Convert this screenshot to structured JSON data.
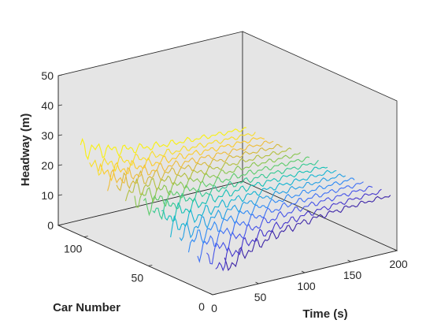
{
  "chart_data": {
    "type": "3d-line",
    "xlabel": "Time (s)",
    "ylabel": "Car Number",
    "zlabel": "Headway (m)",
    "xlim": [
      0,
      200
    ],
    "ylim": [
      0,
      120
    ],
    "zlim": [
      0,
      50
    ],
    "xticks": [
      0,
      50,
      100,
      150,
      200
    ],
    "yticks": [
      0,
      50,
      100
    ],
    "zticks": [
      0,
      10,
      20,
      30,
      40,
      50
    ],
    "grid": false,
    "box": true,
    "series_start_time_s": 20,
    "series_end_time_s": 200,
    "series": [
      {
        "car": 5,
        "color": "#3e26a8",
        "start_headway": 6,
        "end_headway": 18
      },
      {
        "car": 12,
        "color": "#4536cc",
        "start_headway": 5,
        "end_headway": 18
      },
      {
        "car": 19,
        "color": "#4653e8",
        "start_headway": 7,
        "end_headway": 18
      },
      {
        "car": 26,
        "color": "#3f6ff5",
        "start_headway": 8,
        "end_headway": 18
      },
      {
        "car": 33,
        "color": "#2f8af5",
        "start_headway": 9,
        "end_headway": 18
      },
      {
        "car": 40,
        "color": "#23a0e4",
        "start_headway": 10,
        "end_headway": 18
      },
      {
        "car": 47,
        "color": "#14b4d2",
        "start_headway": 11,
        "end_headway": 18
      },
      {
        "car": 54,
        "color": "#16c0b6",
        "start_headway": 13,
        "end_headway": 18
      },
      {
        "car": 61,
        "color": "#35c892",
        "start_headway": 14,
        "end_headway": 18
      },
      {
        "car": 68,
        "color": "#5dcb6c",
        "start_headway": 15,
        "end_headway": 18
      },
      {
        "car": 75,
        "color": "#8ac650",
        "start_headway": 16,
        "end_headway": 18
      },
      {
        "car": 82,
        "color": "#b3bf3f",
        "start_headway": 17,
        "end_headway": 18
      },
      {
        "car": 89,
        "color": "#d5b93b",
        "start_headway": 18,
        "end_headway": 18
      },
      {
        "car": 96,
        "color": "#eebc3a",
        "start_headway": 18,
        "end_headway": 18
      },
      {
        "car": 103,
        "color": "#fbcb2b",
        "start_headway": 19,
        "end_headway": 18
      },
      {
        "car": 110,
        "color": "#f9de27",
        "start_headway": 20,
        "end_headway": 18
      },
      {
        "car": 117,
        "color": "#f9f00f",
        "start_headway": 25,
        "end_headway": 18
      }
    ]
  }
}
